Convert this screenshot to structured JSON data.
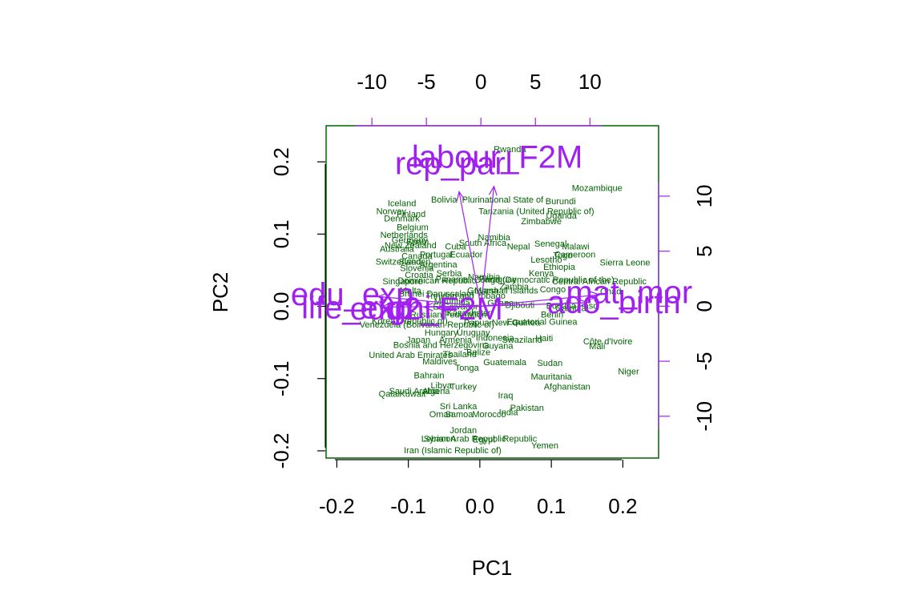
{
  "chart_data": {
    "type": "scatter",
    "subtype": "pca-biplot",
    "xlabel": "PC1",
    "ylabel": "PC2",
    "xlim": [
      -0.215,
      0.25
    ],
    "ylim": [
      -0.21,
      0.25
    ],
    "xticks": [
      -0.2,
      -0.1,
      0.0,
      0.1,
      0.2
    ],
    "xtick_labels": [
      "-0.2",
      "-0.1",
      "0.0",
      "0.1",
      "0.2"
    ],
    "yticks": [
      -0.2,
      -0.1,
      0.0,
      0.1,
      0.2
    ],
    "ytick_labels": [
      "-0.2",
      "-0.1",
      "0.0",
      "0.1",
      "0.2"
    ],
    "secondary_axes": {
      "xlim": [
        -14.2,
        16.3
      ],
      "ylim": [
        -13.8,
        16.4
      ],
      "xticks": [
        -10,
        -5,
        0,
        5,
        10
      ],
      "xtick_labels": [
        "-10",
        "-5",
        "0",
        "5",
        "10"
      ],
      "yticks": [
        -10,
        -5,
        0,
        5,
        10
      ],
      "ytick_labels": [
        "-10",
        "-5",
        "0",
        "5",
        "10"
      ]
    },
    "grid": false,
    "colors": {
      "observations": "#006400",
      "variables": "#a020f0",
      "frame": "#006400",
      "secondary_axis": "#a020f0",
      "primary_axis": "#000000"
    },
    "observations": [
      {
        "label": "Rwanda",
        "x": 0.042,
        "y": 0.218
      },
      {
        "label": "Mozambique",
        "x": 0.164,
        "y": 0.164
      },
      {
        "label": "Burundi",
        "x": 0.113,
        "y": 0.146
      },
      {
        "label": "Bolivia",
        "x": -0.05,
        "y": 0.148
      },
      {
        "label": "Plurinational State of",
        "x": 0.032,
        "y": 0.148
      },
      {
        "label": "Tanzania (United Republic of)",
        "x": 0.079,
        "y": 0.132
      },
      {
        "label": "Uganda",
        "x": 0.114,
        "y": 0.126
      },
      {
        "label": "Zimbabwe",
        "x": 0.086,
        "y": 0.118
      },
      {
        "label": "Iceland",
        "x": -0.109,
        "y": 0.143
      },
      {
        "label": "Norway",
        "x": -0.124,
        "y": 0.132
      },
      {
        "label": "Finland",
        "x": -0.096,
        "y": 0.128
      },
      {
        "label": "Denmark",
        "x": -0.109,
        "y": 0.122
      },
      {
        "label": "Belgium",
        "x": -0.094,
        "y": 0.11
      },
      {
        "label": "Netherlands",
        "x": -0.106,
        "y": 0.099
      },
      {
        "label": "Germany",
        "x": -0.098,
        "y": 0.092
      },
      {
        "label": "Spain",
        "x": -0.087,
        "y": 0.09
      },
      {
        "label": "New Zealand",
        "x": -0.097,
        "y": 0.085
      },
      {
        "label": "Australia",
        "x": -0.116,
        "y": 0.08
      },
      {
        "label": "Cuba",
        "x": -0.034,
        "y": 0.083
      },
      {
        "label": "Namibia",
        "x": 0.02,
        "y": 0.096
      },
      {
        "label": "South Africa",
        "x": 0.004,
        "y": 0.088
      },
      {
        "label": "Senegal",
        "x": 0.099,
        "y": 0.087
      },
      {
        "label": "Malawi",
        "x": 0.134,
        "y": 0.083
      },
      {
        "label": "Nepal",
        "x": 0.054,
        "y": 0.083
      },
      {
        "label": "Canada",
        "x": -0.088,
        "y": 0.07
      },
      {
        "label": "Portugal",
        "x": -0.061,
        "y": 0.072
      },
      {
        "label": "Ecuador",
        "x": -0.019,
        "y": 0.072
      },
      {
        "label": "Togo",
        "x": 0.116,
        "y": 0.071
      },
      {
        "label": "Cameroon",
        "x": 0.133,
        "y": 0.072
      },
      {
        "label": "Lesotho",
        "x": 0.093,
        "y": 0.065
      },
      {
        "label": "Sierra Leone",
        "x": 0.203,
        "y": 0.061
      },
      {
        "label": "Ethiopia",
        "x": 0.111,
        "y": 0.055
      },
      {
        "label": "Switzerland",
        "x": -0.114,
        "y": 0.062
      },
      {
        "label": "Sweden",
        "x": -0.091,
        "y": 0.062
      },
      {
        "label": "Argentina",
        "x": -0.058,
        "y": 0.058
      },
      {
        "label": "Kenya",
        "x": 0.086,
        "y": 0.046
      },
      {
        "label": "Slovenia",
        "x": -0.088,
        "y": 0.053
      },
      {
        "label": "Croatia",
        "x": -0.085,
        "y": 0.044
      },
      {
        "label": "Serbia",
        "x": -0.043,
        "y": 0.046
      },
      {
        "label": "Namibia",
        "x": 0.006,
        "y": 0.041
      },
      {
        "label": "Dominican Republic",
        "x": -0.06,
        "y": 0.036
      },
      {
        "label": "Panama",
        "x": -0.039,
        "y": 0.038
      },
      {
        "label": "Paraguay",
        "x": 0.025,
        "y": 0.038
      },
      {
        "label": "Congo (Democratic Republic of the)",
        "x": 0.09,
        "y": 0.037
      },
      {
        "label": "Central African Republic",
        "x": 0.167,
        "y": 0.035
      },
      {
        "label": "Congo",
        "x": 0.102,
        "y": 0.024
      },
      {
        "label": "Zambia",
        "x": 0.048,
        "y": 0.028
      },
      {
        "label": "Singapore",
        "x": -0.108,
        "y": 0.035
      },
      {
        "label": "Malta",
        "x": -0.097,
        "y": 0.022
      },
      {
        "label": "Brunei Darussalam",
        "x": -0.061,
        "y": 0.018
      },
      {
        "label": "Trinidad and Tobago",
        "x": -0.02,
        "y": 0.015
      },
      {
        "label": "Guyana",
        "x": 0.004,
        "y": 0.022
      },
      {
        "label": "Marshall Islands",
        "x": 0.037,
        "y": 0.022
      },
      {
        "label": "Chad",
        "x": 0.183,
        "y": 0.021
      },
      {
        "label": "Mauritius",
        "x": -0.039,
        "y": 0.007
      },
      {
        "label": "El Salvador",
        "x": -0.034,
        "y": 0.0
      },
      {
        "label": "Ghana",
        "x": 0.029,
        "y": 0.005
      },
      {
        "label": "Djibouti",
        "x": 0.056,
        "y": 0.002
      },
      {
        "label": "Burkina Faso",
        "x": 0.129,
        "y": 0.001
      },
      {
        "label": "Gambia",
        "x": 0.127,
        "y": -0.002
      },
      {
        "label": "Benin",
        "x": 0.101,
        "y": -0.011
      },
      {
        "label": "Korea (Republic of)",
        "x": -0.098,
        "y": -0.02
      },
      {
        "label": "Venezuela (Bolivarian Republic of)",
        "x": -0.074,
        "y": -0.025
      },
      {
        "label": "Russian Federation",
        "x": -0.044,
        "y": -0.011
      },
      {
        "label": "Kazakhstan",
        "x": -0.014,
        "y": -0.009
      },
      {
        "label": "Papua New Guinea",
        "x": 0.031,
        "y": -0.022
      },
      {
        "label": "Equatorial Guinea",
        "x": 0.087,
        "y": -0.021
      },
      {
        "label": "Hungary",
        "x": -0.054,
        "y": -0.036
      },
      {
        "label": "Uruguay",
        "x": -0.009,
        "y": -0.036
      },
      {
        "label": "Japan",
        "x": -0.086,
        "y": -0.046
      },
      {
        "label": "Armenia",
        "x": -0.034,
        "y": -0.046
      },
      {
        "label": "Indonesia",
        "x": 0.021,
        "y": -0.043
      },
      {
        "label": "Swaziland",
        "x": 0.059,
        "y": -0.046
      },
      {
        "label": "Haiti",
        "x": 0.09,
        "y": -0.044
      },
      {
        "label": "Côte d'Ivoire",
        "x": 0.179,
        "y": -0.048
      },
      {
        "label": "Mali",
        "x": 0.164,
        "y": -0.055
      },
      {
        "label": "Bosnia and Herzegovina",
        "x": -0.054,
        "y": -0.053
      },
      {
        "label": "Guyana",
        "x": 0.025,
        "y": -0.054
      },
      {
        "label": "Belize",
        "x": -0.002,
        "y": -0.063
      },
      {
        "label": "Thailand",
        "x": -0.028,
        "y": -0.066
      },
      {
        "label": "United Arab Emirates",
        "x": -0.097,
        "y": -0.067
      },
      {
        "label": "Maldives",
        "x": -0.056,
        "y": -0.076
      },
      {
        "label": "Guatemala",
        "x": 0.035,
        "y": -0.077
      },
      {
        "label": "Sudan",
        "x": 0.098,
        "y": -0.078
      },
      {
        "label": "Tonga",
        "x": -0.018,
        "y": -0.085
      },
      {
        "label": "Niger",
        "x": 0.208,
        "y": -0.09
      },
      {
        "label": "Bahrain",
        "x": -0.071,
        "y": -0.095
      },
      {
        "label": "Mauritania",
        "x": 0.1,
        "y": -0.097
      },
      {
        "label": "Libya",
        "x": -0.054,
        "y": -0.109
      },
      {
        "label": "Turkey",
        "x": -0.023,
        "y": -0.111
      },
      {
        "label": "Afghanistan",
        "x": 0.122,
        "y": -0.111
      },
      {
        "label": "Saudi Arabia",
        "x": -0.092,
        "y": -0.117
      },
      {
        "label": "Algeria",
        "x": -0.061,
        "y": -0.117
      },
      {
        "label": "Qatar",
        "x": -0.126,
        "y": -0.121
      },
      {
        "label": "Kuwait",
        "x": -0.094,
        "y": -0.121
      },
      {
        "label": "Iraq",
        "x": 0.036,
        "y": -0.123
      },
      {
        "label": "Sri Lanka",
        "x": -0.03,
        "y": -0.138
      },
      {
        "label": "Pakistan",
        "x": 0.066,
        "y": -0.14
      },
      {
        "label": "India",
        "x": 0.04,
        "y": -0.146
      },
      {
        "label": "Oman",
        "x": -0.054,
        "y": -0.149
      },
      {
        "label": "Samoa",
        "x": -0.029,
        "y": -0.149
      },
      {
        "label": "Morocco",
        "x": 0.013,
        "y": -0.149
      },
      {
        "label": "Jordan",
        "x": -0.023,
        "y": -0.171
      },
      {
        "label": "Lebanon",
        "x": -0.058,
        "y": -0.183
      },
      {
        "label": "Syrian Arab Republic",
        "x": -0.021,
        "y": -0.183
      },
      {
        "label": "Egypt",
        "x": 0.006,
        "y": -0.184
      },
      {
        "label": "Republic",
        "x": 0.056,
        "y": -0.183
      },
      {
        "label": "Yemen",
        "x": 0.091,
        "y": -0.192
      },
      {
        "label": "Iran (Islamic Republic of)",
        "x": -0.038,
        "y": -0.199
      }
    ],
    "variables": [
      {
        "label": "labour_F2M",
        "x": 1.5,
        "y": 13.6
      },
      {
        "label": "rep_parl",
        "x": -2.5,
        "y": 13.0
      },
      {
        "label": "edu2_F2M",
        "x": -5.0,
        "y": -0.2
      },
      {
        "label": "edu_exp",
        "x": -11.8,
        "y": 1.1
      },
      {
        "label": "life_exp",
        "x": -11.4,
        "y": -0.1
      },
      {
        "label": "gni",
        "x": -6.5,
        "y": -0.1
      },
      {
        "label": "mat_mor",
        "x": 13.6,
        "y": 1.3
      },
      {
        "label": "ado_birth",
        "x": 12.2,
        "y": 0.4
      }
    ]
  }
}
